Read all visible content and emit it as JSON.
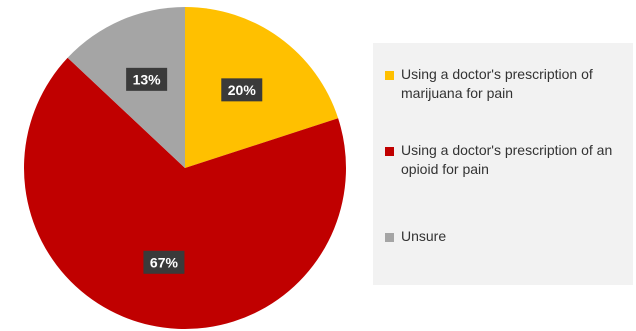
{
  "chart_data": {
    "type": "pie",
    "slices": [
      {
        "label": "Using a doctor's prescription of marijuana for pain",
        "value": 20,
        "display": "20%",
        "color": "#FFC000"
      },
      {
        "label": "Using a doctor's prescription of an opioid for pain",
        "value": 67,
        "display": "67%",
        "color": "#C00000"
      },
      {
        "label": "Unsure",
        "value": 13,
        "display": "13%",
        "color": "#A5A5A5"
      }
    ],
    "legend_position": "right",
    "start_angle_deg": 0,
    "direction": "clockwise"
  }
}
